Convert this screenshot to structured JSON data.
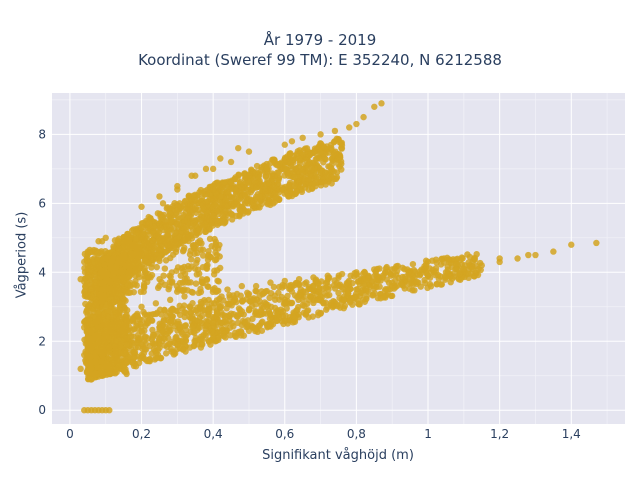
{
  "chart_data": {
    "type": "scatter",
    "title_lines": [
      "År 1979 - 2019",
      "Koordinat (Sweref 99 TM): E 352240, N 6212588"
    ],
    "xlabel": "Signifikant våghöjd (m)",
    "ylabel": "Vågperiod (s)",
    "xlim": [
      -0.05,
      1.55
    ],
    "ylim": [
      -0.4,
      9.2
    ],
    "x_ticks": [
      0,
      0.2,
      0.4,
      0.6,
      0.8,
      1,
      1.2,
      1.4
    ],
    "x_tick_labels": [
      "0",
      "0,2",
      "0,4",
      "0,6",
      "0,8",
      "1",
      "1,2",
      "1,4"
    ],
    "y_ticks": [
      0,
      2,
      4,
      6,
      8
    ],
    "y_tick_labels": [
      "0",
      "2",
      "4",
      "6",
      "8"
    ],
    "grid": true,
    "marker_color": "#d4a421",
    "background_color": "#e5e5f0",
    "series": [
      {
        "x": [
          0.04,
          0.05,
          0.06,
          0.07,
          0.08,
          0.09,
          0.1,
          0.11,
          0.03,
          0.05,
          0.07,
          0.09,
          0.11,
          0.13,
          0.15,
          0.04,
          0.06,
          0.08,
          0.1,
          0.12,
          0.14,
          0.05,
          0.08,
          0.11,
          0.14,
          0.06,
          0.09,
          0.12,
          0.07,
          0.1,
          0.04,
          0.06,
          0.08,
          0.1,
          0.05,
          0.07,
          0.09,
          0.06,
          0.08,
          0.12,
          0.16,
          0.2,
          0.24,
          0.28,
          0.32,
          0.36,
          0.4,
          0.44,
          0.48,
          0.52,
          0.56,
          0.6,
          0.64,
          0.68,
          0.72,
          0.76,
          0.8,
          0.15,
          0.2,
          0.25,
          0.3,
          0.35,
          0.4,
          0.45,
          0.5,
          0.55,
          0.6,
          0.65,
          0.7,
          0.75,
          0.8,
          0.85,
          0.9,
          0.95,
          1.0,
          1.05,
          1.1,
          1.15,
          1.2,
          1.25,
          0.3,
          0.4,
          0.5,
          0.6,
          0.7,
          0.8,
          0.9,
          1.0,
          1.3,
          1.35,
          1.4,
          1.47,
          1.2,
          1.28,
          0.1,
          0.13,
          0.16,
          0.19,
          0.22,
          0.25,
          0.28,
          0.31,
          0.34,
          0.37,
          0.4,
          0.43,
          0.46,
          0.49,
          0.52,
          0.55,
          0.58,
          0.61,
          0.64,
          0.67,
          0.7,
          0.73,
          0.15,
          0.2,
          0.25,
          0.3,
          0.35,
          0.4,
          0.45,
          0.5,
          0.55,
          0.6,
          0.65,
          0.2,
          0.25,
          0.3,
          0.35,
          0.4,
          0.45,
          0.5,
          0.28,
          0.32,
          0.36,
          0.42,
          0.48,
          0.1,
          0.12,
          0.14,
          0.18,
          0.2,
          0.22,
          0.26,
          0.3,
          0.34,
          0.38,
          0.42,
          0.47,
          0.6,
          0.62,
          0.65,
          0.7,
          0.74,
          0.78,
          0.8,
          0.82,
          0.85,
          0.87,
          0.13,
          0.17,
          0.21,
          0.25,
          0.29,
          0.33,
          0.37,
          0.41,
          0.45,
          0.49,
          0.53,
          0.57,
          0.61,
          0.65,
          0.69,
          0.04,
          0.05,
          0.06,
          0.08,
          0.03,
          0.05,
          0.09,
          0.1,
          0.07,
          0.12
        ],
        "y": [
          0,
          0,
          0,
          0,
          0,
          0,
          0,
          0,
          1.2,
          1.1,
          1.05,
          1.05,
          1.1,
          1.2,
          1.3,
          1.6,
          1.8,
          2.0,
          2.2,
          2.1,
          2.3,
          2.6,
          2.8,
          3.0,
          2.9,
          3.3,
          3.5,
          3.4,
          3.8,
          4.0,
          4.3,
          4.6,
          4.9,
          4.4,
          4.1,
          3.7,
          3.2,
          2.5,
          2.2,
          2.7,
          2.9,
          3.0,
          3.1,
          3.2,
          3.3,
          3.4,
          3.5,
          3.5,
          3.6,
          3.6,
          3.7,
          3.75,
          3.8,
          3.85,
          3.9,
          3.95,
          4.0,
          2.2,
          2.3,
          2.4,
          2.5,
          2.6,
          2.7,
          2.8,
          2.9,
          3.0,
          3.1,
          3.2,
          3.3,
          3.4,
          3.5,
          3.6,
          3.7,
          3.8,
          3.9,
          4.0,
          4.1,
          4.2,
          4.3,
          4.4,
          1.9,
          2.1,
          2.3,
          2.6,
          2.8,
          3.3,
          3.6,
          3.9,
          4.5,
          4.6,
          4.8,
          4.85,
          4.4,
          4.5,
          3.0,
          3.6,
          4.2,
          4.7,
          5.1,
          5.4,
          5.7,
          5.9,
          6.1,
          6.3,
          6.5,
          6.6,
          6.7,
          6.8,
          6.9,
          7.0,
          7.1,
          7.2,
          7.3,
          7.4,
          7.5,
          7.6,
          4.5,
          5.0,
          5.4,
          5.8,
          6.1,
          6.4,
          6.6,
          6.8,
          7.0,
          7.2,
          7.4,
          5.9,
          6.2,
          6.5,
          6.8,
          7.0,
          7.2,
          7.5,
          5.2,
          5.5,
          5.8,
          6.2,
          6.5,
          3.5,
          3.9,
          4.3,
          4.8,
          5.3,
          5.6,
          6.0,
          6.4,
          6.8,
          7.0,
          7.3,
          7.6,
          7.7,
          7.8,
          7.9,
          8.0,
          8.1,
          8.2,
          8.3,
          8.5,
          8.8,
          8.9,
          3.2,
          3.6,
          4.0,
          4.4,
          4.7,
          5.0,
          5.3,
          5.5,
          5.7,
          6.0,
          6.2,
          6.5,
          6.8,
          7.0,
          7.3,
          2.4,
          2.9,
          3.5,
          4.2,
          3.8,
          4.6,
          4.9,
          5.0,
          1.4,
          1.6
        ]
      }
    ]
  }
}
